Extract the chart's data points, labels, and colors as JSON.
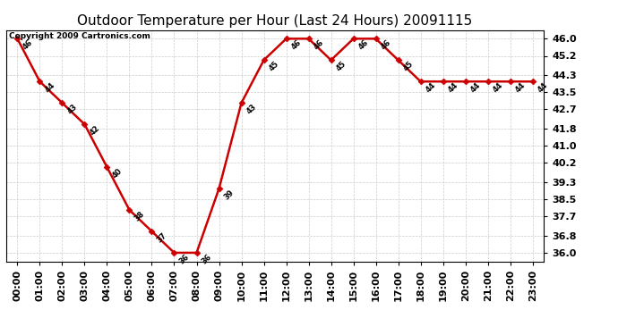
{
  "title": "Outdoor Temperature per Hour (Last 24 Hours) 20091115",
  "copyright": "Copyright 2009 Cartronics.com",
  "hours": [
    "00:00",
    "01:00",
    "02:00",
    "03:00",
    "04:00",
    "05:00",
    "06:00",
    "07:00",
    "08:00",
    "09:00",
    "10:00",
    "11:00",
    "12:00",
    "13:00",
    "14:00",
    "15:00",
    "16:00",
    "17:00",
    "18:00",
    "19:00",
    "20:00",
    "21:00",
    "22:00",
    "23:00"
  ],
  "temps": [
    46,
    44,
    43,
    42,
    40,
    38,
    37,
    36,
    36,
    39,
    43,
    45,
    46,
    46,
    45,
    46,
    46,
    45,
    44,
    44,
    44,
    44,
    44,
    44
  ],
  "line_color": "#cc0000",
  "marker_color": "#cc0000",
  "bg_color": "#ffffff",
  "grid_color": "#cccccc",
  "ylim_min": 35.6,
  "ylim_max": 46.4,
  "yticks": [
    36.0,
    36.8,
    37.7,
    38.5,
    39.3,
    40.2,
    41.0,
    41.8,
    42.7,
    43.5,
    44.3,
    45.2,
    46.0
  ],
  "title_fontsize": 11,
  "tick_fontsize": 8,
  "annot_fontsize": 6,
  "copyright_fontsize": 6.5
}
